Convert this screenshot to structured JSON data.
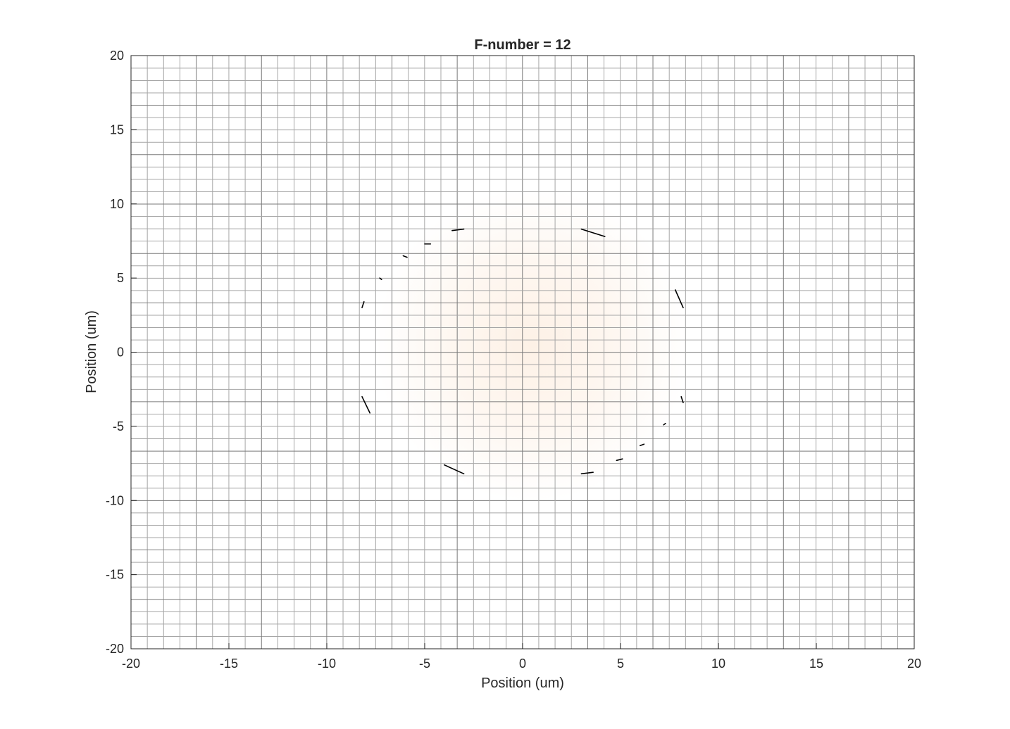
{
  "chart_data": {
    "type": "heatmap",
    "title": "F-number = 12",
    "xlabel": "Position (um)",
    "ylabel": "Position (um)",
    "xlim": [
      -20,
      20
    ],
    "ylim": [
      -20,
      20
    ],
    "x_ticks": [
      -20,
      -15,
      -10,
      -5,
      0,
      5,
      10,
      15,
      20
    ],
    "y_ticks": [
      -20,
      -15,
      -10,
      -5,
      0,
      5,
      10,
      15,
      20
    ],
    "x_tick_labels": [
      "-20",
      "-15",
      "-10",
      "-5",
      "0",
      "5",
      "10",
      "15",
      "20"
    ],
    "y_tick_labels": [
      "-20",
      "-15",
      "-10",
      "-5",
      "0",
      "5",
      "10",
      "15",
      "20"
    ],
    "grid": true,
    "grid_spacing": 0.833,
    "grid_major_spacing": 3.333,
    "glow_center": [
      0.5,
      0.5
    ],
    "glow_radius": 5,
    "glow_color": "#fdf1e6",
    "ring_segments": [
      [
        [
          -3.6,
          8.2
        ],
        [
          -3.0,
          8.3
        ]
      ],
      [
        [
          -5.0,
          7.3
        ],
        [
          -4.7,
          7.3
        ]
      ],
      [
        [
          -6.1,
          6.5
        ],
        [
          -5.9,
          6.4
        ]
      ],
      [
        [
          -7.3,
          5.0
        ],
        [
          -7.2,
          4.9
        ]
      ],
      [
        [
          -8.1,
          3.4
        ],
        [
          -8.2,
          3.0
        ]
      ],
      [
        [
          -8.2,
          -3.0
        ],
        [
          -7.8,
          -4.1
        ]
      ],
      [
        [
          -4.0,
          -7.6
        ],
        [
          -3.0,
          -8.2
        ]
      ],
      [
        [
          3.0,
          -8.2
        ],
        [
          3.6,
          -8.1
        ]
      ],
      [
        [
          4.8,
          -7.3
        ],
        [
          5.1,
          -7.2
        ]
      ],
      [
        [
          6.0,
          -6.3
        ],
        [
          6.2,
          -6.2
        ]
      ],
      [
        [
          7.2,
          -4.9
        ],
        [
          7.3,
          -4.8
        ]
      ],
      [
        [
          8.1,
          -3.0
        ],
        [
          8.2,
          -3.4
        ]
      ],
      [
        [
          7.8,
          4.2
        ],
        [
          8.2,
          3.0
        ]
      ],
      [
        [
          3.0,
          8.3
        ],
        [
          4.2,
          7.8
        ]
      ]
    ],
    "ring_color": "#000000"
  }
}
